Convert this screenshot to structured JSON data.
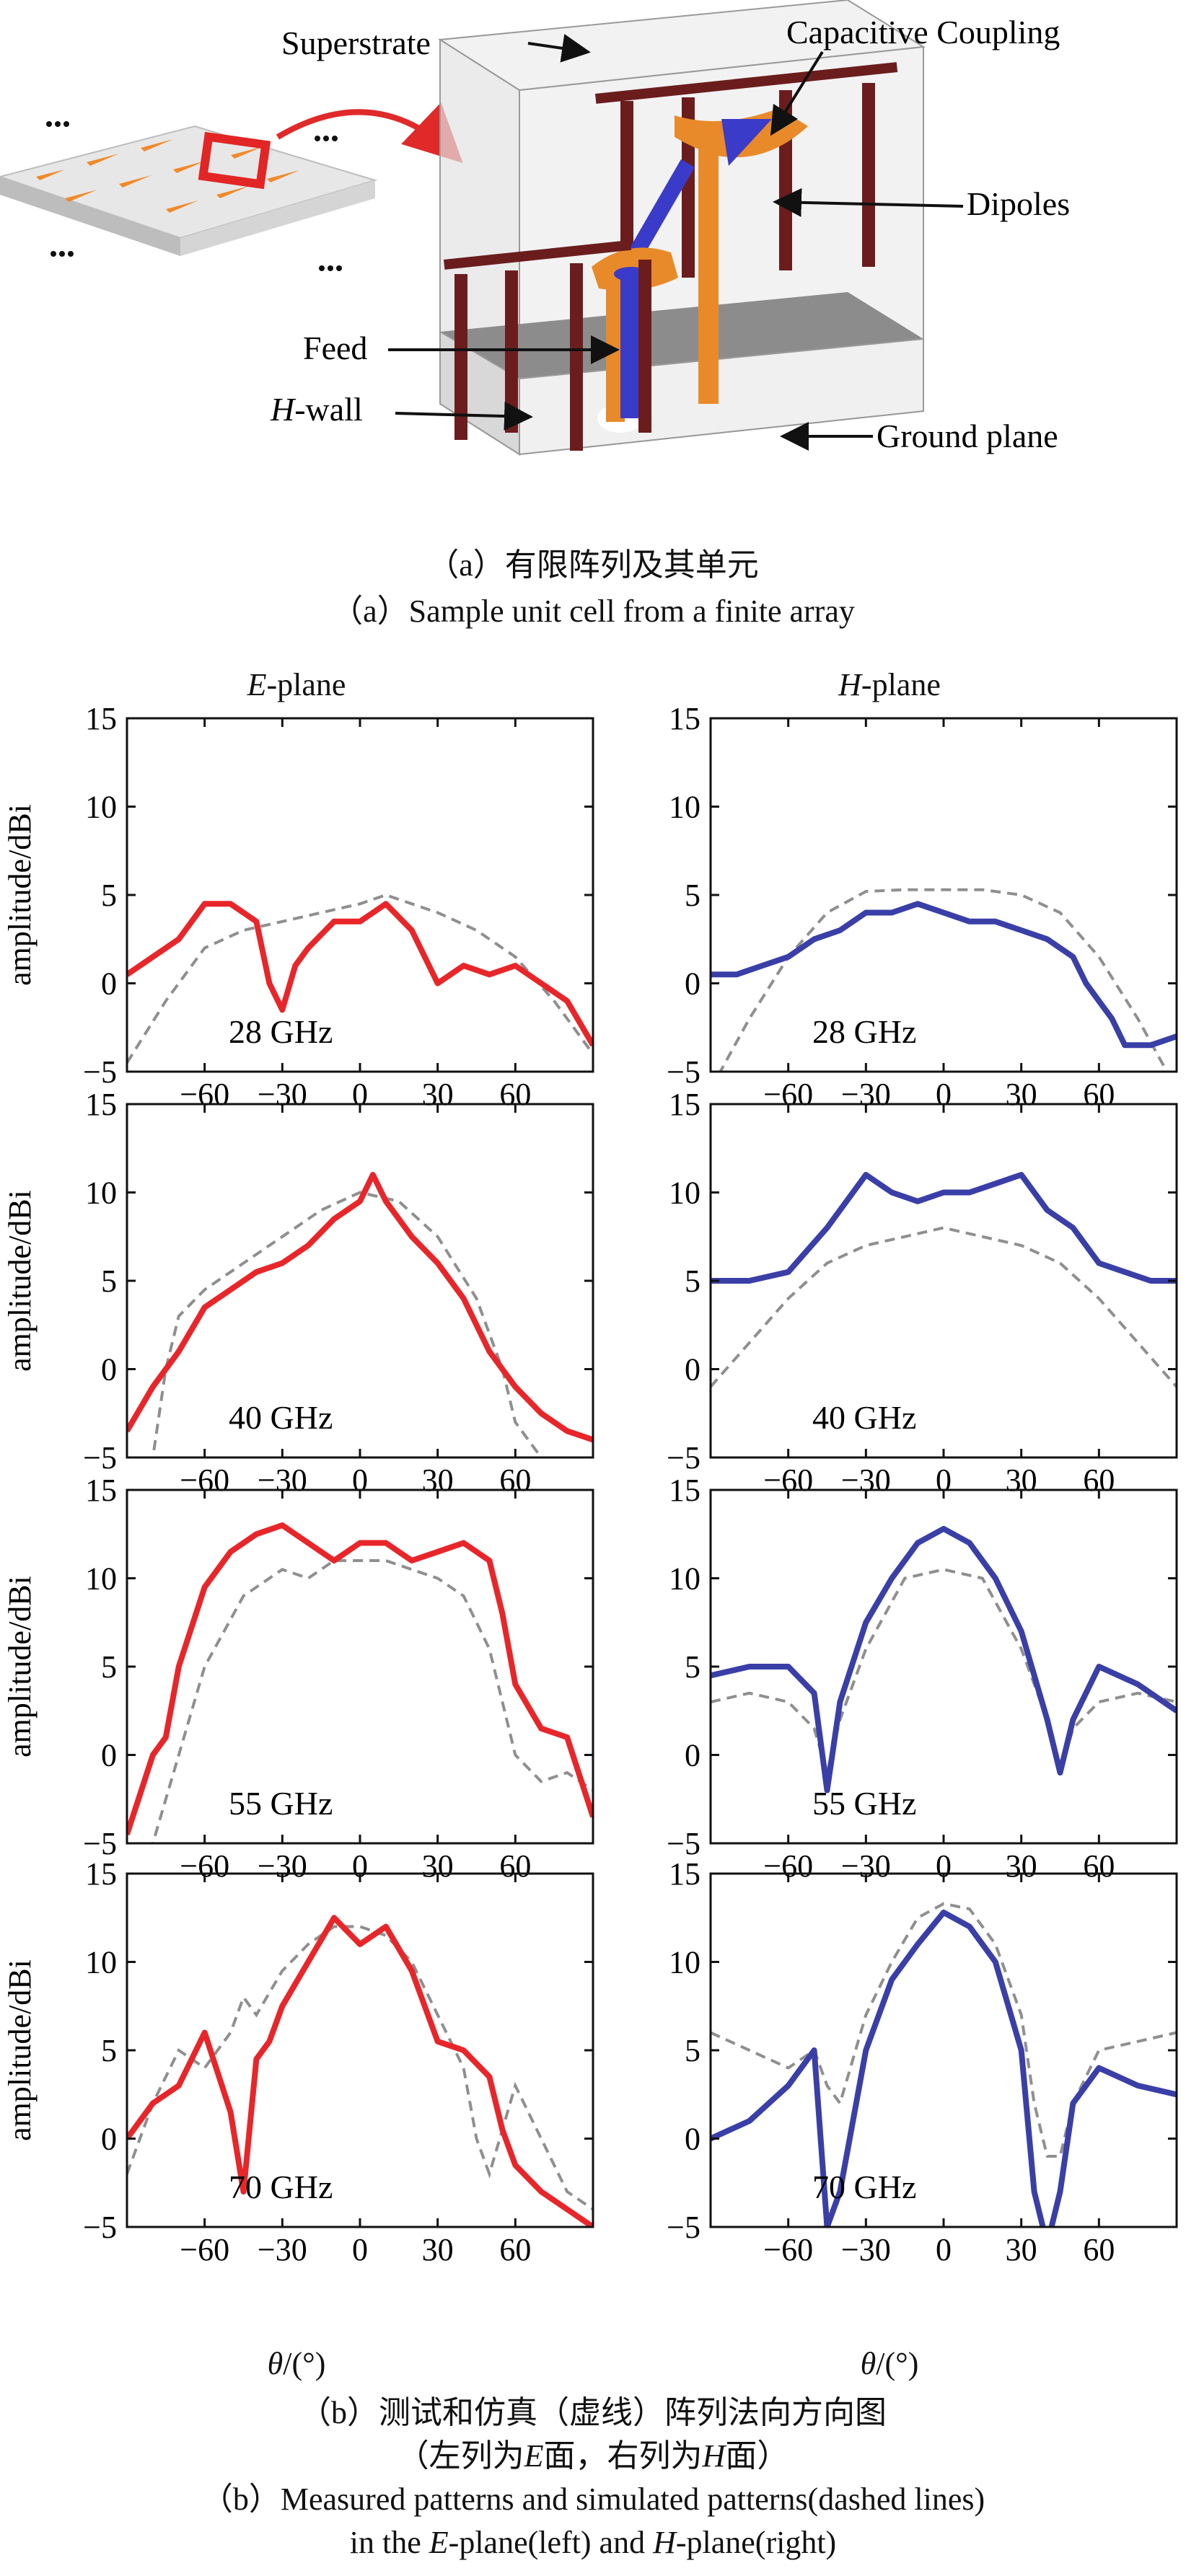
{
  "figure_a": {
    "labels": {
      "superstrate": "Superstrate",
      "capacitive": "Capacitive Coupling",
      "dipoles": "Dipoles",
      "feed": "Feed",
      "hwall_italic": "H",
      "hwall_rest": "-wall",
      "ground": "Ground plane"
    },
    "caption_cn": "（a）有限阵列及其单元",
    "caption_en": "（a）Sample unit cell from a finite array"
  },
  "figure_b": {
    "col_left_italic": "E",
    "col_left_rest": "-plane",
    "col_right_italic": "H",
    "col_right_rest": "-plane",
    "xlabel_italic": "θ",
    "xlabel_rest": "/(°)",
    "caption_cn_1": "（b）测试和仿真（虚线）阵列法向方向图",
    "caption_cn_2_a": "（左列为",
    "caption_cn_2_b": "E",
    "caption_cn_2_c": "面，右列为",
    "caption_cn_2_d": "H",
    "caption_cn_2_e": "面）",
    "caption_en_1": "（b）Measured patterns and simulated patterns(dashed lines)",
    "caption_en_2_a": "in the ",
    "caption_en_2_b": "E",
    "caption_en_2_c": "-plane(left) and ",
    "caption_en_2_d": "H",
    "caption_en_2_e": "-plane(right)"
  },
  "chart_data": [
    {
      "type": "line",
      "panel": "E-plane 28 GHz",
      "annotation": "28 GHz",
      "ylabel": "amplitude/dBi",
      "xlim": [
        -90,
        90
      ],
      "ylim": [
        -5,
        15
      ],
      "xticks": [
        -60,
        -30,
        0,
        30,
        60
      ],
      "yticks": [
        -5,
        0,
        5,
        10,
        15
      ],
      "color": "#e8262a",
      "measured": {
        "x": [
          -90,
          -80,
          -70,
          -60,
          -50,
          -40,
          -35,
          -30,
          -25,
          -20,
          -10,
          0,
          10,
          20,
          30,
          40,
          50,
          60,
          70,
          80,
          90
        ],
        "y": [
          0.5,
          1.5,
          2.5,
          4.5,
          4.5,
          3.5,
          0,
          -1.5,
          1,
          2,
          3.5,
          3.5,
          4.5,
          3,
          0,
          1,
          0.5,
          1,
          0,
          -1,
          -3.5
        ]
      },
      "simulated": {
        "x": [
          -90,
          -75,
          -60,
          -45,
          -30,
          -15,
          0,
          10,
          20,
          30,
          45,
          60,
          75,
          90
        ],
        "y": [
          -4.5,
          -1,
          2,
          3,
          3.5,
          4,
          4.5,
          5,
          4.5,
          4,
          3,
          1.5,
          -1,
          -4
        ]
      }
    },
    {
      "type": "line",
      "panel": "H-plane 28 GHz",
      "annotation": "28 GHz",
      "ylabel": "",
      "xlim": [
        -90,
        90
      ],
      "ylim": [
        -5,
        15
      ],
      "xticks": [
        -60,
        -30,
        0,
        30,
        60
      ],
      "yticks": [
        -5,
        0,
        5,
        10,
        15
      ],
      "color": "#3a3fa8",
      "measured": {
        "x": [
          -90,
          -80,
          -70,
          -60,
          -50,
          -40,
          -30,
          -20,
          -10,
          0,
          10,
          20,
          30,
          40,
          50,
          55,
          60,
          65,
          70,
          80,
          90
        ],
        "y": [
          0.5,
          0.5,
          1,
          1.5,
          2.5,
          3,
          4,
          4,
          4.5,
          4,
          3.5,
          3.5,
          3,
          2.5,
          1.5,
          0,
          -1,
          -2,
          -3.5,
          -3.5,
          -3
        ]
      },
      "simulated": {
        "x": [
          -90,
          -75,
          -60,
          -45,
          -30,
          -15,
          0,
          15,
          30,
          45,
          60,
          75,
          90
        ],
        "y": [
          -6,
          -2,
          1.5,
          4,
          5.2,
          5.3,
          5.3,
          5.3,
          5,
          4,
          1.5,
          -2,
          -6
        ]
      }
    },
    {
      "type": "line",
      "panel": "E-plane 40 GHz",
      "annotation": "40 GHz",
      "ylabel": "amplitude/dBi",
      "xlim": [
        -90,
        90
      ],
      "ylim": [
        -5,
        15
      ],
      "xticks": [
        -60,
        -30,
        0,
        30,
        60
      ],
      "yticks": [
        -5,
        0,
        5,
        10,
        15
      ],
      "color": "#e8262a",
      "measured": {
        "x": [
          -90,
          -80,
          -70,
          -60,
          -50,
          -40,
          -30,
          -20,
          -10,
          0,
          5,
          10,
          20,
          30,
          40,
          50,
          60,
          70,
          80,
          90
        ],
        "y": [
          -3.5,
          -1,
          1,
          3.5,
          4.5,
          5.5,
          6,
          7,
          8.5,
          9.5,
          11,
          9.5,
          7.5,
          6,
          4,
          1,
          -1,
          -2.5,
          -3.5,
          -4
        ]
      },
      "simulated": {
        "x": [
          -90,
          -80,
          -75,
          -70,
          -60,
          -45,
          -30,
          -15,
          0,
          15,
          30,
          45,
          55,
          60,
          70,
          80,
          90
        ],
        "y": [
          -8,
          -5,
          0,
          3,
          4.5,
          6,
          7.5,
          9,
          10,
          9.5,
          7.5,
          4,
          0,
          -3,
          -5,
          -6,
          -7
        ]
      }
    },
    {
      "type": "line",
      "panel": "H-plane 40 GHz",
      "annotation": "40 GHz",
      "ylabel": "",
      "xlim": [
        -90,
        90
      ],
      "ylim": [
        -5,
        15
      ],
      "xticks": [
        -60,
        -30,
        0,
        30,
        60
      ],
      "yticks": [
        -5,
        0,
        5,
        10,
        15
      ],
      "color": "#3a3fa8",
      "measured": {
        "x": [
          -90,
          -75,
          -60,
          -45,
          -30,
          -20,
          -10,
          0,
          10,
          20,
          30,
          40,
          50,
          60,
          70,
          80,
          90
        ],
        "y": [
          5,
          5,
          5.5,
          8,
          11,
          10,
          9.5,
          10,
          10,
          10.5,
          11,
          9,
          8,
          6,
          5.5,
          5,
          5
        ]
      },
      "simulated": {
        "x": [
          -90,
          -75,
          -60,
          -45,
          -30,
          -15,
          0,
          15,
          30,
          45,
          60,
          75,
          90
        ],
        "y": [
          -1,
          1.5,
          4,
          6,
          7,
          7.5,
          8,
          7.5,
          7,
          6,
          4,
          1.5,
          -1
        ]
      }
    },
    {
      "type": "line",
      "panel": "E-plane 55 GHz",
      "annotation": "55 GHz",
      "ylabel": "amplitude/dBi",
      "xlim": [
        -90,
        90
      ],
      "ylim": [
        -5,
        15
      ],
      "xticks": [
        -60,
        -30,
        0,
        30,
        60
      ],
      "yticks": [
        -5,
        0,
        5,
        10,
        15
      ],
      "color": "#e8262a",
      "measured": {
        "x": [
          -90,
          -80,
          -75,
          -70,
          -60,
          -50,
          -40,
          -30,
          -20,
          -10,
          0,
          10,
          20,
          30,
          40,
          50,
          55,
          60,
          70,
          80,
          90
        ],
        "y": [
          -4.5,
          0,
          1,
          5,
          9.5,
          11.5,
          12.5,
          13,
          12,
          11,
          12,
          12,
          11,
          11.5,
          12,
          11,
          8,
          4,
          1.5,
          1,
          -3.5
        ]
      },
      "simulated": {
        "x": [
          -90,
          -80,
          -70,
          -60,
          -45,
          -30,
          -20,
          -10,
          0,
          10,
          20,
          30,
          40,
          50,
          55,
          60,
          70,
          80,
          90
        ],
        "y": [
          -9,
          -5,
          0,
          5,
          9,
          10.5,
          10,
          11,
          11,
          11,
          10.5,
          10,
          9,
          6,
          3,
          0,
          -1.5,
          -1,
          -2
        ]
      }
    },
    {
      "type": "line",
      "panel": "H-plane 55 GHz",
      "annotation": "55 GHz",
      "ylabel": "",
      "xlim": [
        -90,
        90
      ],
      "ylim": [
        -5,
        15
      ],
      "xticks": [
        -60,
        -30,
        0,
        30,
        60
      ],
      "yticks": [
        -5,
        0,
        5,
        10,
        15
      ],
      "color": "#3a3fa8",
      "measured": {
        "x": [
          -90,
          -75,
          -60,
          -50,
          -45,
          -40,
          -30,
          -20,
          -10,
          0,
          10,
          20,
          30,
          40,
          45,
          50,
          60,
          75,
          90
        ],
        "y": [
          4.5,
          5,
          5,
          3.5,
          -2,
          3,
          7.5,
          10,
          12,
          12.8,
          12,
          10,
          7,
          2,
          -1,
          2,
          5,
          4,
          2.5
        ]
      },
      "simulated": {
        "x": [
          -90,
          -75,
          -60,
          -50,
          -45,
          -40,
          -30,
          -15,
          0,
          15,
          30,
          40,
          45,
          50,
          60,
          75,
          90
        ],
        "y": [
          3,
          3.5,
          3,
          1.5,
          -1,
          2,
          6,
          10,
          10.5,
          10,
          6,
          2,
          -1,
          1.5,
          3,
          3.5,
          3
        ]
      }
    },
    {
      "type": "line",
      "panel": "E-plane 70 GHz",
      "annotation": "70 GHz",
      "ylabel": "amplitude/dBi",
      "xlim": [
        -90,
        90
      ],
      "ylim": [
        -5,
        15
      ],
      "xticks": [
        -60,
        -30,
        0,
        30,
        60
      ],
      "yticks": [
        -5,
        0,
        5,
        10,
        15
      ],
      "color": "#e8262a",
      "measured": {
        "x": [
          -90,
          -80,
          -70,
          -60,
          -50,
          -45,
          -40,
          -35,
          -30,
          -20,
          -10,
          0,
          10,
          20,
          30,
          40,
          50,
          55,
          60,
          70,
          80,
          90
        ],
        "y": [
          0,
          2,
          3,
          6,
          1.5,
          -3,
          4.5,
          5.5,
          7.5,
          10,
          12.5,
          11,
          12,
          9.5,
          5.5,
          5,
          3.5,
          0.5,
          -1.5,
          -3,
          -4,
          -5
        ]
      },
      "simulated": {
        "x": [
          -90,
          -80,
          -70,
          -60,
          -50,
          -45,
          -40,
          -30,
          -20,
          -10,
          0,
          10,
          20,
          30,
          40,
          45,
          50,
          60,
          70,
          80,
          90
        ],
        "y": [
          -2,
          2,
          5,
          4,
          6,
          8,
          7,
          9.5,
          11,
          12,
          12,
          11.5,
          10,
          7,
          4,
          0,
          -2,
          3,
          0,
          -3,
          -4
        ]
      }
    },
    {
      "type": "line",
      "panel": "H-plane 70 GHz",
      "annotation": "70 GHz",
      "ylabel": "",
      "xlim": [
        -90,
        90
      ],
      "ylim": [
        -5,
        15
      ],
      "xticks": [
        -60,
        -30,
        0,
        30,
        60
      ],
      "yticks": [
        -5,
        0,
        5,
        10,
        15
      ],
      "color": "#3a3fa8",
      "measured": {
        "x": [
          -90,
          -75,
          -60,
          -50,
          -45,
          -40,
          -30,
          -20,
          -10,
          0,
          10,
          20,
          30,
          35,
          40,
          45,
          50,
          60,
          75,
          90
        ],
        "y": [
          0,
          1,
          3,
          5,
          -5,
          -3,
          5,
          9,
          11,
          12.8,
          12,
          10,
          5,
          -3,
          -6,
          -3,
          2,
          4,
          3,
          2.5
        ]
      },
      "simulated": {
        "x": [
          -90,
          -75,
          -60,
          -50,
          -45,
          -40,
          -30,
          -20,
          -10,
          0,
          10,
          20,
          30,
          35,
          40,
          45,
          50,
          60,
          75,
          90
        ],
        "y": [
          6,
          5,
          4,
          5,
          3,
          2,
          7,
          10,
          12.5,
          13.3,
          13,
          11,
          7,
          2,
          -1,
          -1,
          2,
          5,
          5.5,
          6
        ]
      }
    }
  ]
}
